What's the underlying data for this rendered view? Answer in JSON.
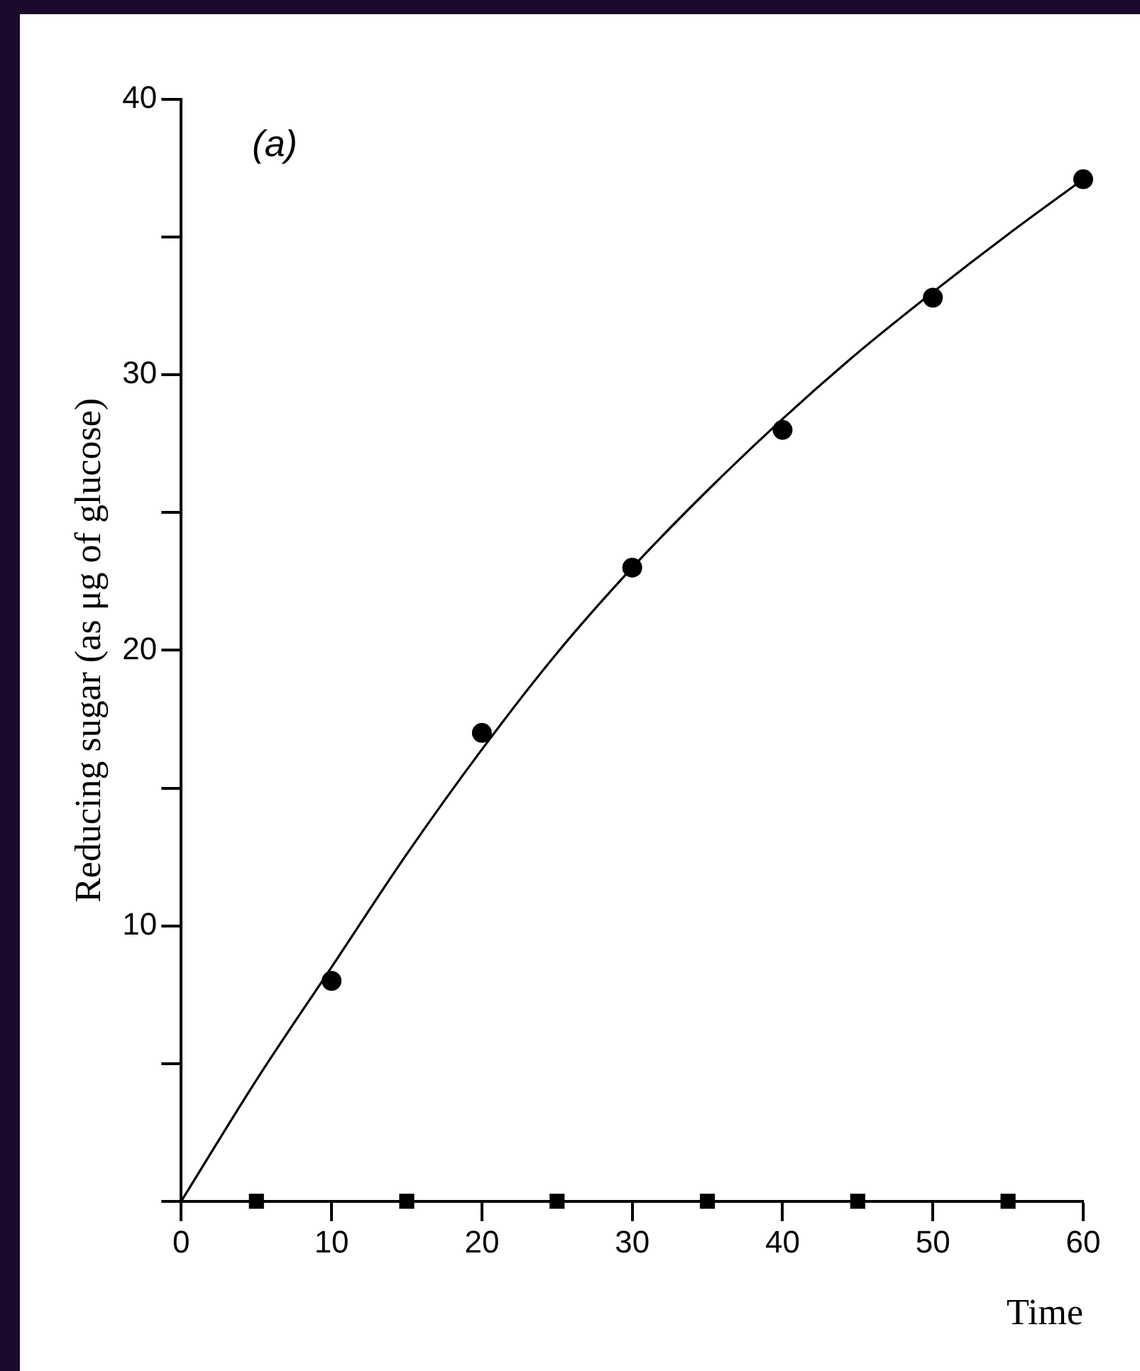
{
  "chart_data": {
    "type": "scatter",
    "xlabel": "Time",
    "ylabel": "Reducing sugar (as μg of glucose)",
    "annotations": [
      "(a)"
    ],
    "xlim": [
      0,
      60
    ],
    "xticks": [
      0,
      10,
      20,
      30,
      40,
      50,
      60
    ],
    "ylim": [
      0,
      40
    ],
    "yticks": [
      {
        "value": 0,
        "label": null
      },
      {
        "value": 5,
        "label": null
      },
      10,
      {
        "value": 15,
        "label": null
      },
      20,
      {
        "value": 25,
        "label": null
      },
      30,
      {
        "value": 35,
        "label": null
      },
      40
    ],
    "grid": false,
    "legend": false,
    "series": [
      {
        "type": "line",
        "marker": "none",
        "color": "#000000",
        "x": [
          0,
          5,
          10,
          15,
          20,
          25,
          30,
          35,
          40,
          45,
          50,
          55,
          60
        ],
        "values": [
          0,
          4.4,
          8.5,
          12.6,
          16.4,
          19.9,
          23.0,
          25.8,
          28.4,
          30.8,
          33.0,
          35.1,
          37.1
        ]
      },
      {
        "type": "scatter",
        "marker": "circle",
        "color": "#000000",
        "x": [
          10,
          20,
          30,
          40,
          50,
          60
        ],
        "values": [
          8,
          17,
          23,
          28,
          32.8,
          37.1
        ]
      },
      {
        "type": "scatter",
        "marker": "square",
        "color": "#000000",
        "x": [
          5,
          15,
          25,
          35,
          45,
          55
        ],
        "values": [
          0,
          0,
          0,
          0,
          0,
          0
        ]
      }
    ]
  }
}
